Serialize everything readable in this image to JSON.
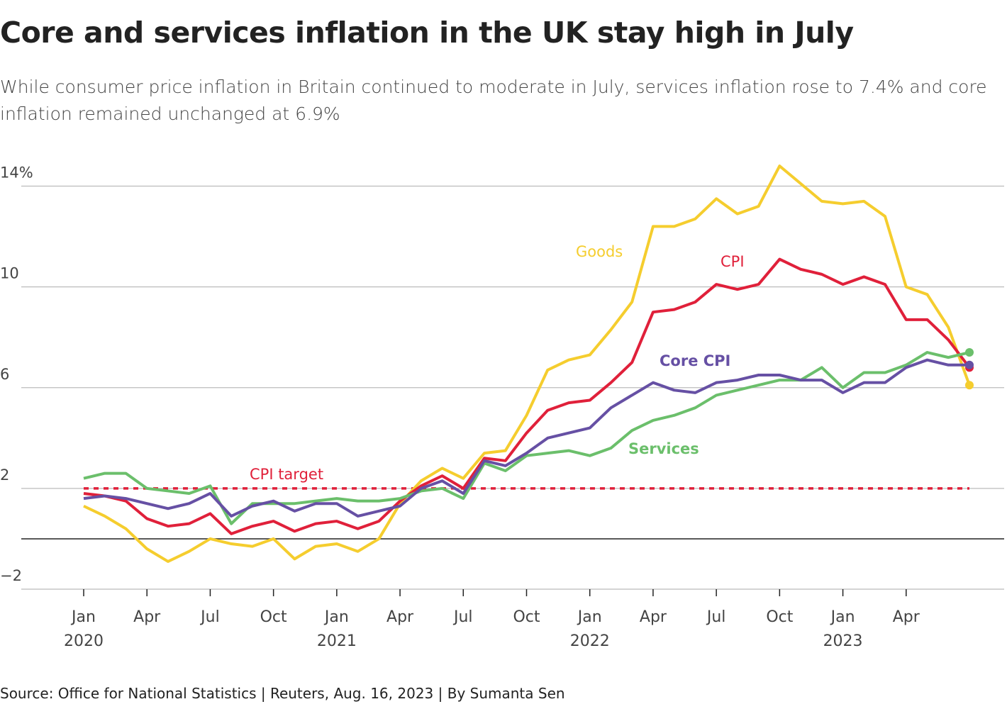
{
  "chart_data": {
    "type": "line",
    "title": "Core and services inflation in the UK stay high in July",
    "subtitle": "While consumer price inflation in Britain continued to moderate in July, services inflation rose to 7.4% and core inflation remained unchanged at 6.9%",
    "source": "Source: Office for National Statistics | Reuters, Aug. 16, 2023 | By Sumanta Sen",
    "categories": [
      "Jan 2020",
      null,
      null,
      "Apr",
      null,
      null,
      "Jul",
      null,
      null,
      "Oct",
      null,
      null,
      "Jan 2021",
      null,
      null,
      "Apr",
      null,
      null,
      "Jul",
      null,
      null,
      "Oct",
      null,
      null,
      "Jan 2022",
      null,
      null,
      "Apr",
      null,
      null,
      "Jul",
      null,
      null,
      "Oct",
      null,
      null,
      "Jan 2023",
      null,
      null,
      "Apr",
      null,
      null,
      null
    ],
    "ylim": [
      -2,
      15
    ],
    "yticks": [
      {
        "value": -2,
        "label": "−2"
      },
      2,
      6,
      10,
      {
        "value": 14,
        "label": "14%"
      }
    ],
    "grid": true,
    "reference_line": {
      "label": "CPI target",
      "value": 2,
      "color": "#e0203a"
    },
    "series": [
      {
        "name": "Goods",
        "color": "#f5cd2e",
        "values": [
          1.3,
          0.9,
          0.4,
          -0.4,
          -0.9,
          -0.5,
          0.0,
          -0.2,
          -0.3,
          0.0,
          -0.8,
          -0.3,
          -0.2,
          -0.5,
          0.0,
          1.4,
          2.3,
          2.8,
          2.4,
          3.4,
          3.5,
          4.9,
          6.7,
          7.1,
          7.3,
          8.3,
          9.4,
          12.4,
          12.4,
          12.7,
          13.5,
          12.9,
          13.2,
          14.8,
          14.1,
          13.4,
          13.3,
          13.4,
          12.8,
          10.0,
          9.7,
          8.4,
          6.1
        ]
      },
      {
        "name": "CPI",
        "color": "#e0203a",
        "values": [
          1.8,
          1.7,
          1.5,
          0.8,
          0.5,
          0.6,
          1.0,
          0.2,
          0.5,
          0.7,
          0.3,
          0.6,
          0.7,
          0.4,
          0.7,
          1.5,
          2.1,
          2.5,
          2.0,
          3.2,
          3.1,
          4.2,
          5.1,
          5.4,
          5.5,
          6.2,
          7.0,
          9.0,
          9.1,
          9.4,
          10.1,
          9.9,
          10.1,
          11.1,
          10.7,
          10.5,
          10.1,
          10.4,
          10.1,
          8.7,
          8.7,
          7.9,
          6.8
        ]
      },
      {
        "name": "Services",
        "color": "#6bbf6b",
        "values": [
          2.4,
          2.6,
          2.6,
          2.0,
          1.9,
          1.8,
          2.1,
          0.6,
          1.4,
          1.4,
          1.4,
          1.5,
          1.6,
          1.5,
          1.5,
          1.6,
          1.9,
          2.0,
          1.6,
          3.0,
          2.7,
          3.3,
          3.4,
          3.5,
          3.3,
          3.6,
          4.3,
          4.7,
          4.9,
          5.2,
          5.7,
          5.9,
          6.1,
          6.3,
          6.3,
          6.8,
          6.0,
          6.6,
          6.6,
          6.9,
          7.4,
          7.2,
          7.4
        ]
      },
      {
        "name": "Core CPI",
        "color": "#6650a4",
        "values": [
          1.6,
          1.7,
          1.6,
          1.4,
          1.2,
          1.4,
          1.8,
          0.9,
          1.3,
          1.5,
          1.1,
          1.4,
          1.4,
          0.9,
          1.1,
          1.3,
          2.0,
          2.3,
          1.8,
          3.1,
          2.9,
          3.4,
          4.0,
          4.2,
          4.4,
          5.2,
          5.7,
          6.2,
          5.9,
          5.8,
          6.2,
          6.3,
          6.5,
          6.5,
          6.3,
          6.3,
          5.8,
          6.2,
          6.2,
          6.8,
          7.1,
          6.9,
          6.9
        ]
      }
    ]
  }
}
